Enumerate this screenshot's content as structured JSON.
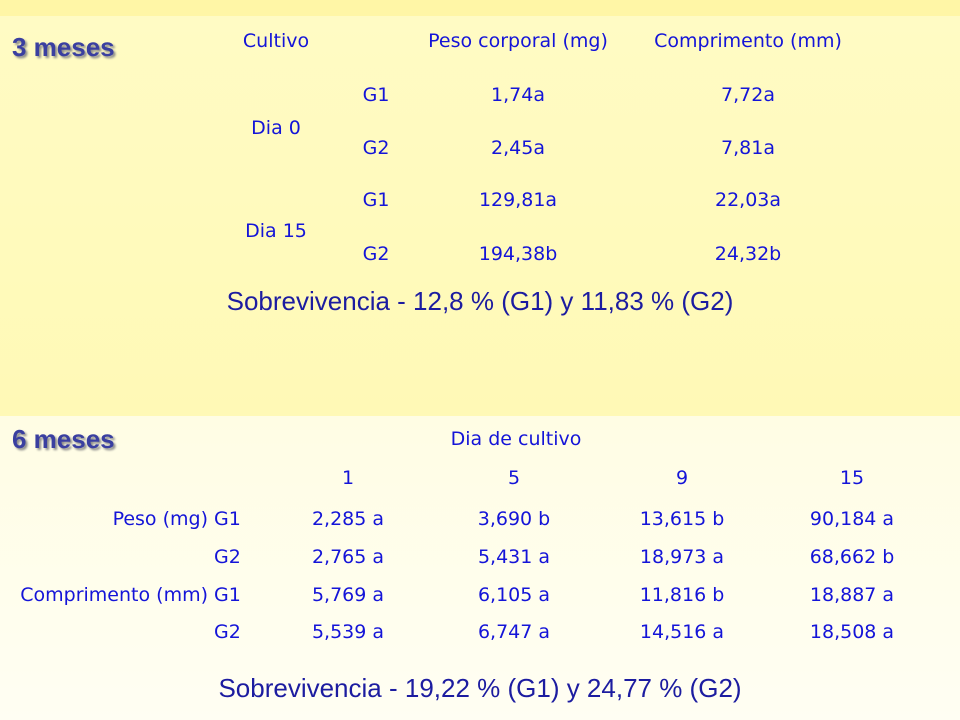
{
  "section1": {
    "title": "3 meses",
    "headers": [
      "Cultivo",
      "Peso corporal (mg)",
      "Comprimento (mm)"
    ],
    "days": [
      "Dia 0",
      "Dia 15"
    ],
    "rows": [
      {
        "group": "G1",
        "peso": "1,74a",
        "comp": "7,72a"
      },
      {
        "group": "G2",
        "peso": "2,45a",
        "comp": "7,81a"
      },
      {
        "group": "G1",
        "peso": "129,81a",
        "comp": "22,03a"
      },
      {
        "group": "G2",
        "peso": "194,38b",
        "comp": "24,32b"
      }
    ],
    "survival": "Sobrevivencia - 12,8 % (G1) y 11,83 % (G2)"
  },
  "section2": {
    "title": "6 meses",
    "heading": "Dia de cultivo",
    "days": [
      "1",
      "5",
      "9",
      "15"
    ],
    "variables": [
      "Peso (mg)",
      "Comprimento (mm)"
    ],
    "rows": [
      {
        "group": "G1",
        "values": [
          "2,285 a",
          "3,690 b",
          "13,615 b",
          "90,184 a"
        ]
      },
      {
        "group": "G2",
        "values": [
          "2,765 a",
          "5,431 a",
          "18,973 a",
          "68,662 b"
        ]
      },
      {
        "group": "G1",
        "values": [
          "5,769 a",
          "6,105 a",
          "11,816 b",
          "18,887 a"
        ]
      },
      {
        "group": "G2",
        "values": [
          "5,539 a",
          "6,747 a",
          "14,516 a",
          "18,508 a"
        ]
      }
    ],
    "survival": "Sobrevivencia - 19,22 % (G1) y 24,77 % (G2)"
  }
}
